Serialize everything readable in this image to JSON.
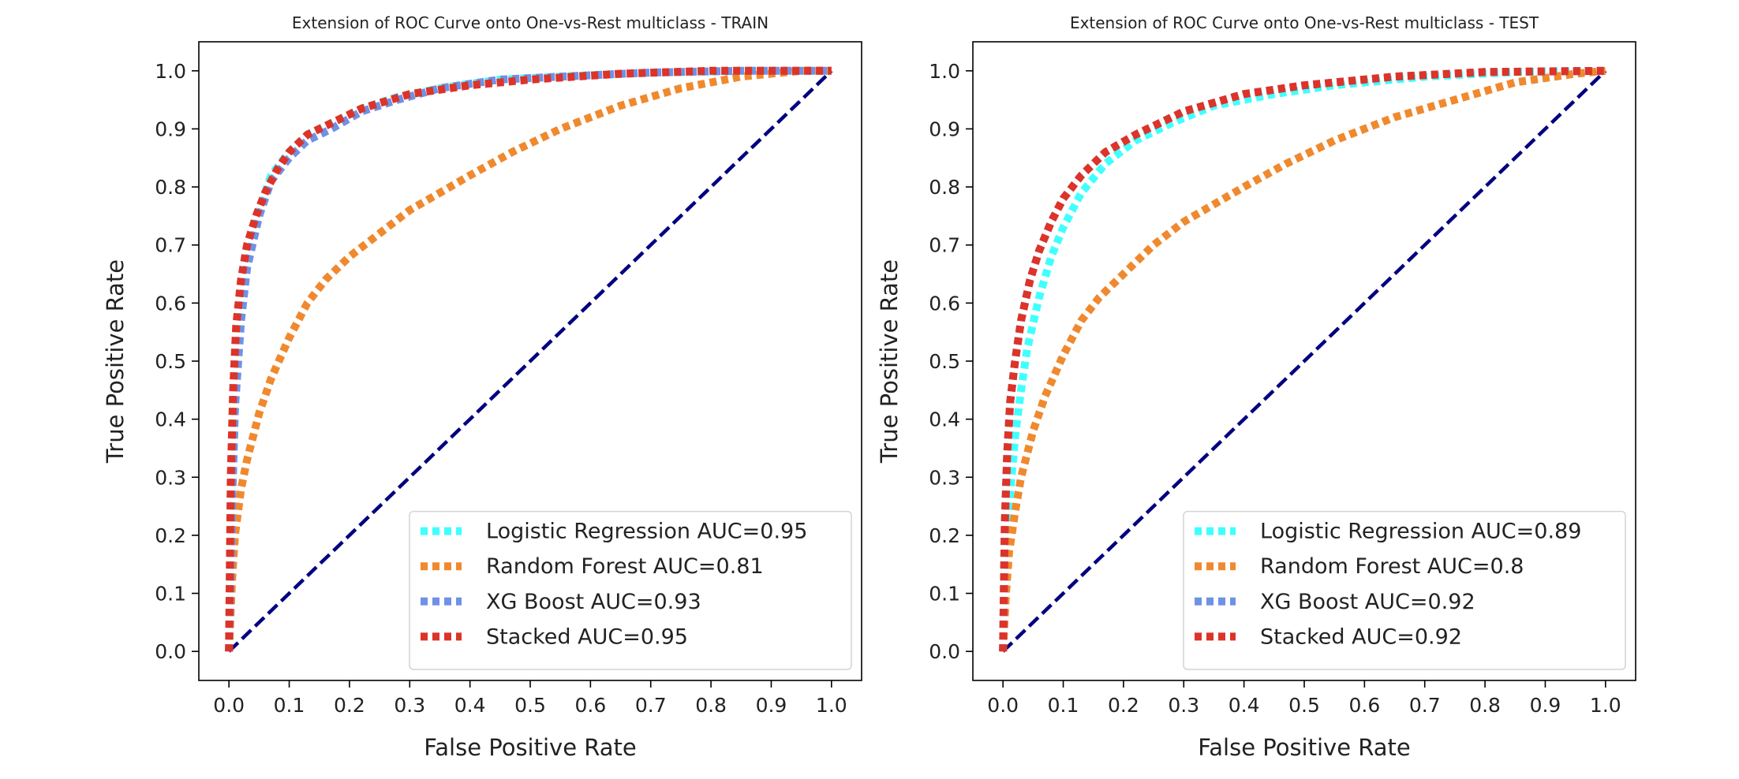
{
  "chart_data": [
    {
      "type": "line",
      "title": "Extension of ROC Curve onto One-vs-Rest multiclass - TRAIN",
      "xlabel": "False Positive Rate",
      "ylabel": "True Positive Rate",
      "xlim": [
        -0.05,
        1.05
      ],
      "ylim": [
        -0.05,
        1.05
      ],
      "xticks": [
        0.0,
        0.1,
        0.2,
        0.3,
        0.4,
        0.5,
        0.6,
        0.7,
        0.8,
        0.9,
        1.0
      ],
      "yticks": [
        0.0,
        0.1,
        0.2,
        0.3,
        0.4,
        0.5,
        0.6,
        0.7,
        0.8,
        0.9,
        1.0
      ],
      "xtick_labels": [
        "0.0",
        "0.1",
        "0.2",
        "0.3",
        "0.4",
        "0.5",
        "0.6",
        "0.7",
        "0.8",
        "0.9",
        "1.0"
      ],
      "ytick_labels": [
        "0.0",
        "0.1",
        "0.2",
        "0.3",
        "0.4",
        "0.5",
        "0.6",
        "0.7",
        "0.8",
        "0.9",
        "1.0"
      ],
      "grid": false,
      "legend_position": "bottom-right",
      "diagonal": {
        "x": [
          0,
          1
        ],
        "y": [
          0,
          1
        ],
        "color": "#000080",
        "style": "dashed"
      },
      "series": [
        {
          "name": "Logistic Regression AUC=0.95",
          "color": "#40ffff",
          "style": "dotted",
          "x": [
            0,
            0.005,
            0.01,
            0.02,
            0.03,
            0.05,
            0.07,
            0.1,
            0.13,
            0.17,
            0.22,
            0.28,
            0.35,
            0.45,
            0.55,
            0.7,
            0.85,
            1.0
          ],
          "y": [
            0,
            0.25,
            0.42,
            0.58,
            0.67,
            0.76,
            0.82,
            0.86,
            0.89,
            0.91,
            0.935,
            0.955,
            0.97,
            0.985,
            0.99,
            0.997,
            1.0,
            1.0
          ]
        },
        {
          "name": "Random Forest AUC=0.81",
          "color": "#f0892e",
          "style": "dotted",
          "x": [
            0,
            0.005,
            0.01,
            0.02,
            0.03,
            0.05,
            0.07,
            0.1,
            0.13,
            0.16,
            0.2,
            0.25,
            0.3,
            0.35,
            0.4,
            0.47,
            0.55,
            0.65,
            0.75,
            0.85,
            0.95,
            1.0
          ],
          "y": [
            0,
            0.12,
            0.2,
            0.28,
            0.33,
            0.41,
            0.47,
            0.54,
            0.6,
            0.64,
            0.68,
            0.72,
            0.76,
            0.79,
            0.82,
            0.86,
            0.9,
            0.94,
            0.97,
            0.99,
            1.0,
            1.0
          ]
        },
        {
          "name": "XG Boost AUC=0.93",
          "color": "#6f91e6",
          "style": "dotted",
          "x": [
            0,
            0.005,
            0.01,
            0.02,
            0.03,
            0.05,
            0.07,
            0.1,
            0.13,
            0.17,
            0.22,
            0.28,
            0.35,
            0.45,
            0.55,
            0.7,
            0.85,
            1.0
          ],
          "y": [
            0,
            0.25,
            0.42,
            0.57,
            0.66,
            0.75,
            0.81,
            0.85,
            0.88,
            0.9,
            0.93,
            0.95,
            0.97,
            0.985,
            0.99,
            0.997,
            1.0,
            1.0
          ]
        },
        {
          "name": "Stacked AUC=0.95",
          "color": "#dd3328",
          "style": "dotted",
          "x": [
            0,
            0.003,
            0.007,
            0.012,
            0.02,
            0.03,
            0.045,
            0.06,
            0.08,
            0.1,
            0.13,
            0.17,
            0.22,
            0.3,
            0.4,
            0.5,
            0.65,
            0.8,
            1.0
          ],
          "y": [
            0,
            0.3,
            0.45,
            0.56,
            0.64,
            0.7,
            0.75,
            0.79,
            0.83,
            0.86,
            0.89,
            0.91,
            0.935,
            0.96,
            0.975,
            0.985,
            0.995,
            1.0,
            1.0
          ]
        }
      ]
    },
    {
      "type": "line",
      "title": "Extension of ROC Curve onto One-vs-Rest multiclass - TEST",
      "xlabel": "False Positive Rate",
      "ylabel": "True Positive Rate",
      "xlim": [
        -0.05,
        1.05
      ],
      "ylim": [
        -0.05,
        1.05
      ],
      "xticks": [
        0.0,
        0.1,
        0.2,
        0.3,
        0.4,
        0.5,
        0.6,
        0.7,
        0.8,
        0.9,
        1.0
      ],
      "yticks": [
        0.0,
        0.1,
        0.2,
        0.3,
        0.4,
        0.5,
        0.6,
        0.7,
        0.8,
        0.9,
        1.0
      ],
      "xtick_labels": [
        "0.0",
        "0.1",
        "0.2",
        "0.3",
        "0.4",
        "0.5",
        "0.6",
        "0.7",
        "0.8",
        "0.9",
        "1.0"
      ],
      "ytick_labels": [
        "0.0",
        "0.1",
        "0.2",
        "0.3",
        "0.4",
        "0.5",
        "0.6",
        "0.7",
        "0.8",
        "0.9",
        "1.0"
      ],
      "grid": false,
      "legend_position": "bottom-right",
      "diagonal": {
        "x": [
          0,
          1
        ],
        "y": [
          0,
          1
        ],
        "color": "#000080",
        "style": "dashed"
      },
      "series": [
        {
          "name": "Logistic Regression AUC=0.89",
          "color": "#40ffff",
          "style": "dotted",
          "x": [
            0,
            0.005,
            0.01,
            0.02,
            0.03,
            0.04,
            0.06,
            0.08,
            0.1,
            0.13,
            0.17,
            0.22,
            0.28,
            0.35,
            0.45,
            0.55,
            0.7,
            0.85,
            1.0
          ],
          "y": [
            0,
            0.15,
            0.25,
            0.37,
            0.45,
            0.52,
            0.61,
            0.68,
            0.73,
            0.79,
            0.84,
            0.88,
            0.91,
            0.94,
            0.96,
            0.975,
            0.99,
            0.998,
            1.0
          ]
        },
        {
          "name": "Random Forest AUC=0.8",
          "color": "#f0892e",
          "style": "dotted",
          "x": [
            0,
            0.005,
            0.01,
            0.02,
            0.03,
            0.05,
            0.07,
            0.1,
            0.13,
            0.16,
            0.2,
            0.25,
            0.3,
            0.35,
            0.4,
            0.47,
            0.55,
            0.65,
            0.75,
            0.85,
            0.95,
            1.0
          ],
          "y": [
            0,
            0.1,
            0.17,
            0.24,
            0.3,
            0.38,
            0.44,
            0.51,
            0.57,
            0.61,
            0.65,
            0.7,
            0.74,
            0.77,
            0.8,
            0.84,
            0.88,
            0.92,
            0.95,
            0.98,
            0.995,
            1.0
          ]
        },
        {
          "name": "XG Boost AUC=0.92",
          "color": "#6f91e6",
          "style": "dotted",
          "x": [
            0,
            0.003,
            0.007,
            0.012,
            0.02,
            0.03,
            0.045,
            0.06,
            0.08,
            0.1,
            0.13,
            0.17,
            0.22,
            0.3,
            0.4,
            0.5,
            0.65,
            0.8,
            1.0
          ],
          "y": [
            0,
            0.22,
            0.34,
            0.43,
            0.5,
            0.57,
            0.64,
            0.69,
            0.74,
            0.78,
            0.82,
            0.86,
            0.89,
            0.93,
            0.96,
            0.975,
            0.99,
            0.998,
            1.0
          ]
        },
        {
          "name": "Stacked AUC=0.92",
          "color": "#dd3328",
          "style": "dotted",
          "x": [
            0,
            0.003,
            0.007,
            0.012,
            0.02,
            0.03,
            0.045,
            0.06,
            0.08,
            0.1,
            0.13,
            0.17,
            0.22,
            0.3,
            0.4,
            0.5,
            0.65,
            0.8,
            1.0
          ],
          "y": [
            0,
            0.22,
            0.34,
            0.43,
            0.5,
            0.57,
            0.64,
            0.69,
            0.74,
            0.78,
            0.82,
            0.86,
            0.89,
            0.93,
            0.96,
            0.975,
            0.99,
            0.998,
            1.0
          ]
        }
      ]
    }
  ]
}
